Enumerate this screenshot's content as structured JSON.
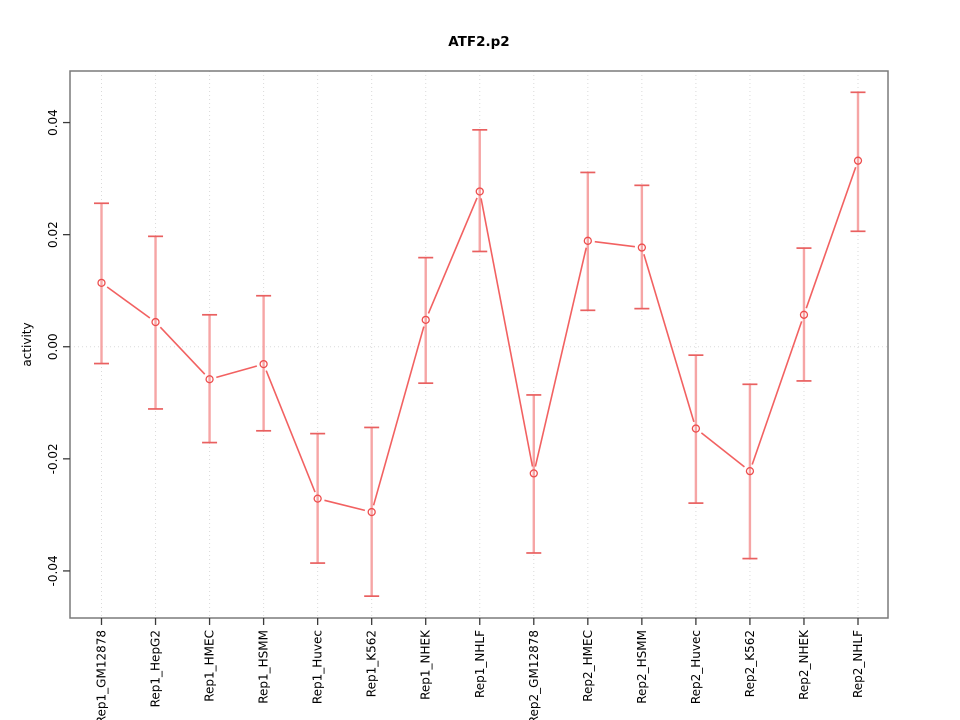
{
  "page": {
    "background": "#ffffff"
  },
  "chart_data": {
    "type": "line",
    "title": "ATF2.p2",
    "xlabel": "",
    "ylabel": "activity",
    "legend": "none",
    "categories": [
      "Rep1_GM12878",
      "Rep1_HepG2",
      "Rep1_HMEC",
      "Rep1_HSMM",
      "Rep1_Huvec",
      "Rep1_K562",
      "Rep1_NHEK",
      "Rep1_NHLF",
      "Rep2_GM12878",
      "Rep2_HMEC",
      "Rep2_HSMM",
      "Rep2_Huvec",
      "Rep2_K562",
      "Rep2_NHEK",
      "Rep2_NHLF"
    ],
    "series": [
      {
        "name": "activity",
        "values": [
          0.0114,
          0.0044,
          -0.0058,
          -0.0031,
          -0.0271,
          -0.0295,
          0.0048,
          0.0277,
          -0.0226,
          0.0189,
          0.0177,
          -0.0146,
          -0.0222,
          0.0057,
          0.0332
        ],
        "err_lo": [
          -0.003,
          -0.0111,
          -0.0171,
          -0.015,
          -0.0386,
          -0.0445,
          -0.0065,
          0.017,
          -0.0368,
          0.0065,
          0.0068,
          -0.0279,
          -0.0378,
          -0.0061,
          0.0206
        ],
        "err_hi": [
          0.0256,
          0.0197,
          0.0057,
          0.0091,
          -0.0155,
          -0.0144,
          0.0159,
          0.0387,
          -0.0086,
          0.0311,
          0.0288,
          -0.0015,
          -0.0067,
          0.0176,
          0.0454
        ]
      }
    ],
    "yticks": [
      -0.04,
      -0.02,
      0,
      0.02,
      0.04
    ],
    "ytick_labels": [
      "-0.04",
      "-0.02",
      "0.00",
      "0.02",
      "0.04"
    ],
    "ylim": [
      -0.0484,
      0.0492
    ],
    "grid": {
      "vertical_dotted_per_category": true,
      "horizontal_dotted_at_zero": true
    },
    "marker": "open-circle",
    "colors": {
      "line": "#f26161",
      "error_bar": "#f6a5a5",
      "error_cap": "#e96060",
      "marker_stroke": "#ed4d4d",
      "grid": "#dadada",
      "frame": "#7a7a7a",
      "tick": "#3a3a3a",
      "text": "#000000"
    }
  }
}
